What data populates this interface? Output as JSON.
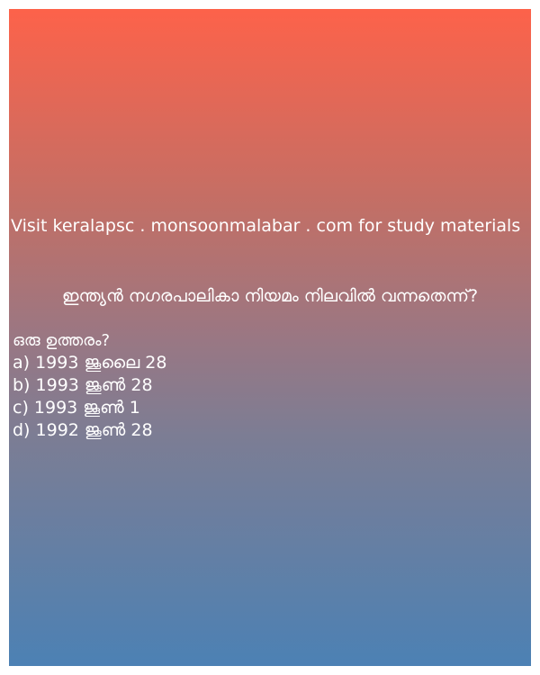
{
  "site_text": "Visit keralapsc . monsoonmalabar . com for study materials",
  "question": "ഇന്ത്യൻ നഗരപാലികാ നിയമം നിലവിൽ വന്നതെന്ന്?",
  "prompt": "ഒരു ഉത്തരം​​?",
  "options": [
    "a) 1993 ജൂലൈ 28",
    "b) 1993 ജൂൺ 28",
    "c) 1993 ജൂൺ 1",
    "d) 1992 ജൂൺ 28"
  ],
  "colors": {
    "gradient_top": "#fd624a",
    "gradient_bottom": "#4c81b4",
    "text": "#ffffff"
  }
}
